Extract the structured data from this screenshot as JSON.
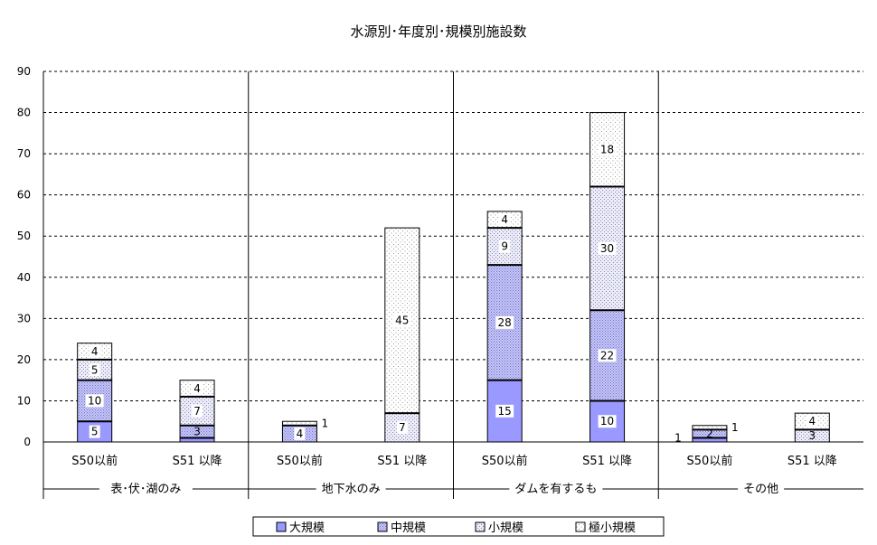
{
  "chart_data": {
    "type": "bar",
    "stacked": true,
    "title": "水源別･年度別･規模別施設数",
    "xlabel": "",
    "ylabel": "",
    "ylim": [
      0,
      90
    ],
    "yticks": [
      0,
      10,
      20,
      30,
      40,
      50,
      60,
      70,
      80,
      90
    ],
    "grid": "horizontal dashed",
    "legend_position": "bottom",
    "groups": [
      "表･伏･湖のみ",
      "地下水のみ",
      "ダムを有するもの",
      "その他"
    ],
    "group_labels_shown": [
      "表･伏･湖のみ",
      "地下水のみ",
      "ダムを有するも",
      "その他"
    ],
    "categories": [
      "S50以前",
      "S51以降",
      "S50以前",
      "S51以降",
      "S50以前",
      "S51以降",
      "S50以前",
      "S51以降"
    ],
    "category_labels_shown": [
      "S50以前",
      "S51 以降",
      "S50以前",
      "S51 以降",
      "S50以前",
      "S51 以降",
      "S50以前",
      "S51 以降"
    ],
    "series": [
      {
        "name": "大規模",
        "color": "#9999ff",
        "pattern": "solid",
        "values": [
          5,
          1,
          0,
          0,
          15,
          10,
          1,
          0
        ]
      },
      {
        "name": "中規模",
        "color": "#9999ff",
        "pattern": "dense-dots",
        "values": [
          10,
          3,
          4,
          0,
          28,
          22,
          2,
          0
        ]
      },
      {
        "name": "小規模",
        "color": "#c8c8ee",
        "pattern": "light-dots",
        "values": [
          5,
          7,
          0,
          7,
          9,
          30,
          0,
          3
        ]
      },
      {
        "name": "極小規模",
        "color": "#ffffff",
        "pattern": "sparse-dots",
        "values": [
          4,
          4,
          1,
          45,
          4,
          18,
          1,
          4
        ]
      }
    ],
    "data_labels": [
      {
        "category_index": 0,
        "series_index": 0,
        "text": "5"
      },
      {
        "category_index": 0,
        "series_index": 1,
        "text": "10"
      },
      {
        "category_index": 0,
        "series_index": 2,
        "text": "5"
      },
      {
        "category_index": 0,
        "series_index": 3,
        "text": "4"
      },
      {
        "category_index": 1,
        "series_index": 1,
        "text": "3"
      },
      {
        "category_index": 1,
        "series_index": 2,
        "text": "7"
      },
      {
        "category_index": 1,
        "series_index": 3,
        "text": "4"
      },
      {
        "category_index": 2,
        "series_index": 1,
        "text": "4"
      },
      {
        "category_index": 2,
        "series_index": 3,
        "text": "1"
      },
      {
        "category_index": 3,
        "series_index": 2,
        "text": "7"
      },
      {
        "category_index": 3,
        "series_index": 3,
        "text": "45"
      },
      {
        "category_index": 4,
        "series_index": 0,
        "text": "15"
      },
      {
        "category_index": 4,
        "series_index": 1,
        "text": "28"
      },
      {
        "category_index": 4,
        "series_index": 2,
        "text": "9"
      },
      {
        "category_index": 4,
        "series_index": 3,
        "text": "4"
      },
      {
        "category_index": 5,
        "series_index": 0,
        "text": "10"
      },
      {
        "category_index": 5,
        "series_index": 1,
        "text": "22"
      },
      {
        "category_index": 5,
        "series_index": 2,
        "text": "30"
      },
      {
        "category_index": 5,
        "series_index": 3,
        "text": "18"
      },
      {
        "category_index": 6,
        "series_index": 0,
        "text": "1"
      },
      {
        "category_index": 6,
        "series_index": 1,
        "text": "2"
      },
      {
        "category_index": 6,
        "series_index": 3,
        "text": "1"
      },
      {
        "category_index": 7,
        "series_index": 2,
        "text": "3"
      },
      {
        "category_index": 7,
        "series_index": 3,
        "text": "4"
      }
    ]
  }
}
